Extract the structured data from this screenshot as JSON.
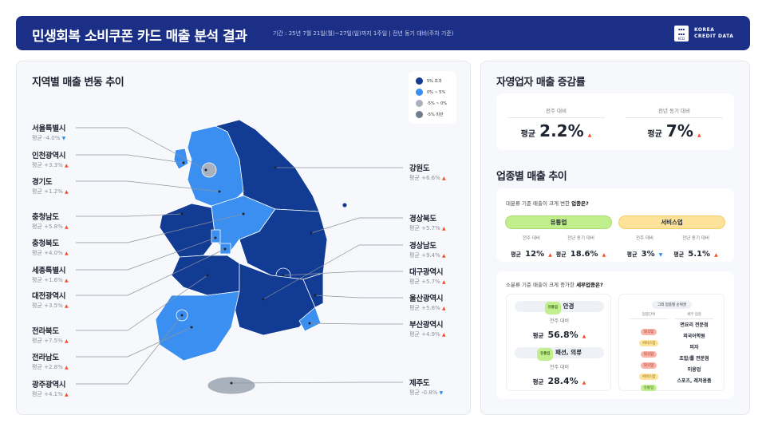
{
  "header": {
    "title": "민생회복 소비쿠폰 카드 매출 분석 결과",
    "period": "기간 : 25년 7월 21일(월)~27일(일)까지 1주일 | 전년 동기 대비(주차 기준)",
    "logo_text": [
      "KOREA",
      "CREDIT DATA"
    ],
    "logo_mark": "KCD"
  },
  "map": {
    "title": "지역별 매출 변동 추이",
    "legend": [
      {
        "label": "5% 초과",
        "color": "#123b94"
      },
      {
        "label": "0% ~ 5%",
        "color": "#3a8ff0"
      },
      {
        "label": "-5% ~ 0%",
        "color": "#a9b1bd"
      },
      {
        "label": "-5% 미만",
        "color": "#6f7c8e"
      }
    ],
    "regions_left": [
      {
        "name": "서울특별시",
        "value": "평균 -4.0%",
        "dir": "down"
      },
      {
        "name": "인천광역시",
        "value": "평균 +3.3%",
        "dir": "up"
      },
      {
        "name": "경기도",
        "value": "평균 +1.2%",
        "dir": "up"
      },
      {
        "name": "충청남도",
        "value": "평균 +5.8%",
        "dir": "up"
      },
      {
        "name": "충청북도",
        "value": "평균 +4.0%",
        "dir": "up"
      },
      {
        "name": "세종특별시",
        "value": "평균 +1.6%",
        "dir": "up"
      },
      {
        "name": "대전광역시",
        "value": "평균 +3.5%",
        "dir": "up"
      },
      {
        "name": "전라북도",
        "value": "평균 +7.5%",
        "dir": "up"
      },
      {
        "name": "전라남도",
        "value": "평균 +2.8%",
        "dir": "up"
      },
      {
        "name": "광주광역시",
        "value": "평균 +4.1%",
        "dir": "up"
      }
    ],
    "regions_right": [
      {
        "name": "강원도",
        "value": "평균 +6.6%",
        "dir": "up"
      },
      {
        "name": "경상북도",
        "value": "평균 +5.7%",
        "dir": "up"
      },
      {
        "name": "경상남도",
        "value": "평균 +9.4%",
        "dir": "up"
      },
      {
        "name": "대구광역시",
        "value": "평균 +5.7%",
        "dir": "up"
      },
      {
        "name": "울산광역시",
        "value": "평균 +5.8%",
        "dir": "up"
      },
      {
        "name": "부산광역시",
        "value": "평균 +4.9%",
        "dir": "up"
      },
      {
        "name": "제주도",
        "value": "평균 -0.8%",
        "dir": "down"
      }
    ]
  },
  "growth": {
    "title": "자영업자 매출 증감률",
    "items": [
      {
        "label": "전주 대비",
        "prefix": "평균",
        "value": "2.2%",
        "dir": "up"
      },
      {
        "label": "전년 동기 대비",
        "prefix": "평균",
        "value": "7%",
        "dir": "up"
      }
    ]
  },
  "industry": {
    "title": "업종별 매출 추이",
    "major": {
      "question_pre": "대분류 기준 매출이 크게 변한 ",
      "question_bold": "업종은?",
      "groups": [
        {
          "name": "유통업",
          "color": "#c2ef8e",
          "stats": [
            {
              "label": "전주 대비",
              "prefix": "평균",
              "value": "12%",
              "dir": "up"
            },
            {
              "label": "전년 동기 대비",
              "prefix": "평균",
              "value": "18.6%",
              "dir": "up"
            }
          ]
        },
        {
          "name": "서비스업",
          "color": "#fde39a",
          "stats": [
            {
              "label": "전주 대비",
              "prefix": "평균",
              "value": "3%",
              "dir": "down"
            },
            {
              "label": "전년 동기 대비",
              "prefix": "평균",
              "value": "5.1%",
              "dir": "up"
            }
          ]
        }
      ]
    },
    "minor": {
      "question_pre": "소분류 기준 매출이 크게 증가한 ",
      "question_bold": "세부업종은?",
      "top": [
        {
          "tag": "유통업",
          "name": "안경",
          "label": "전주 대비",
          "prefix": "평균",
          "value": "56.8%",
          "dir": "up"
        },
        {
          "tag": "유통업",
          "name": "패션, 의류",
          "label": "전주 대비",
          "prefix": "평균",
          "value": "28.4%",
          "dir": "up"
        }
      ],
      "others": {
        "title": "그외 업종별 순위권",
        "col1": "업종단위",
        "col2": "세부 업종",
        "rows": [
          {
            "tag": "외식업",
            "name": "면요리 전문점"
          },
          {
            "tag": "서비스업",
            "name": "외국어학원"
          },
          {
            "tag": "외식업",
            "name": "피자"
          },
          {
            "tag": "외식업",
            "name": "초밥/롤 전문점"
          },
          {
            "tag": "서비스업",
            "name": "미용업"
          },
          {
            "tag": "유통업",
            "name": "스포츠, 레저용품"
          }
        ]
      }
    }
  }
}
